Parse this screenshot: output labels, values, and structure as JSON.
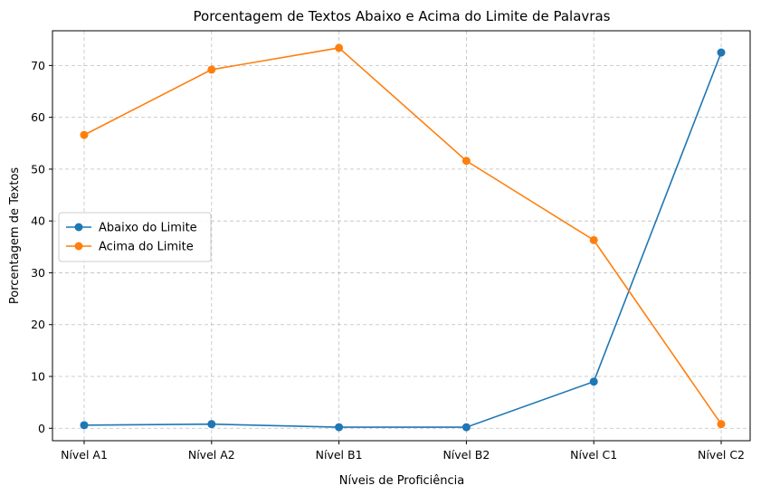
{
  "chart_data": {
    "type": "line",
    "title": "Porcentagem de Textos Abaixo e Acima do Limite de Palavras",
    "xlabel": "Níveis de Proficiência",
    "ylabel": "Porcentagem de Textos",
    "categories": [
      "Nível A1",
      "Nível A2",
      "Nível B1",
      "Nível B2",
      "Nível C1",
      "Nível C2"
    ],
    "ylim": [
      -2.4,
      76.7
    ],
    "yticks": [
      0,
      10,
      20,
      30,
      40,
      50,
      60,
      70
    ],
    "grid": true,
    "legend_position": "center-left",
    "series": [
      {
        "name": "Abaixo do Limite",
        "color": "#1f77b4",
        "marker": "circle",
        "values": [
          0.6,
          0.8,
          0.2,
          0.2,
          9.0,
          72.5
        ]
      },
      {
        "name": "Acima do Limite",
        "color": "#ff7f0e",
        "marker": "circle",
        "values": [
          56.6,
          69.2,
          73.4,
          51.6,
          36.3,
          0.8
        ]
      }
    ]
  }
}
